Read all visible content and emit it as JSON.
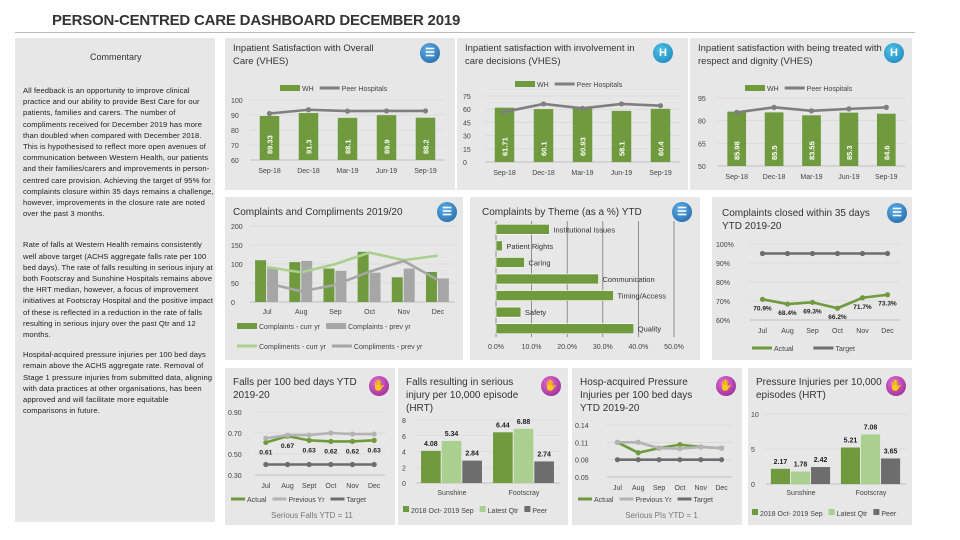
{
  "title": "PERSON-CENTRED CARE DASHBOARD DECEMBER 2019",
  "commentary": {
    "heading": "Commentary",
    "paragraphs": [
      "All feedback is an opportunity to improve clinical practice and our ability to provide Best Care for our patients, families and carers.  The number of compliments received for December 2019 has more than doubled when compared with December 2018.  This is hypothesised to reflect more open avenues of communication between Western Health, our patients and their families/carers and improvements in person-centred care provision.  Achieving the target of 95% for complaints closure within 35 days remains a challenge, however, improvements in the closure rate are noted over the past 3 months.",
      "Rate of falls at Western Health remains consistently well above target (ACHS aggregate falls rate per 100 bed days).  The rate of falls resulting in serious injury at both Footscray and Sunshine Hospitals remains above the HRT median, however, a focus of improvement initiatives at Footscray Hospital and the positive impact of these is reflected in a reduction in the rate of falls resulting in serious injury over the past Qtr and 12 months.",
      "Hospital-acquired pressure injuries per 100 bed days remain above the ACHS aggregate rate.  Removal of Stage 1 pressure injuries from submitted data, aligning with data practices at other organisations, has been approved and will facilitate more equitable comparisons in future."
    ]
  },
  "icons": {
    "satisfaction": "survey-search-icon",
    "hospital": "hospital-h-icon",
    "falls": "patient-safety-icon"
  },
  "chart_data": [
    {
      "type": "bar",
      "title": "Inpatient Satisfaction with Overall Care (VHES)",
      "categories": [
        "Sep-18",
        "Dec-18",
        "Mar-19",
        "Jun-19",
        "Sep-19"
      ],
      "ylim": [
        60,
        100
      ],
      "yticks": [
        "60",
        "70",
        "80",
        "90",
        "100"
      ],
      "ytick_values": [
        60,
        70,
        80,
        90,
        100
      ],
      "series": [
        {
          "name": "WH",
          "kind": "bar",
          "color": "#6f9a3d",
          "values": [
            89.33,
            91.3,
            88.1,
            89.9,
            88.2
          ],
          "labels": [
            "89.33",
            "91.3",
            "88.1",
            "89.9",
            "88.2"
          ]
        },
        {
          "name": "Peer Hospitals",
          "kind": "line",
          "color": "#7f7f7f",
          "values": [
            91,
            93.5,
            92.6,
            92.7,
            92.7
          ]
        }
      ]
    },
    {
      "type": "bar",
      "title": "Inpatient satisfaction with involvement in care decisions (VHES)",
      "categories": [
        "Sep-18",
        "Dec-18",
        "Mar-19",
        "Jun-19",
        "Sep-19"
      ],
      "ylim": [
        0,
        75
      ],
      "yticks": [
        "0",
        "15",
        "30",
        "45",
        "60",
        "75"
      ],
      "ytick_values": [
        0,
        15,
        30,
        45,
        60,
        75
      ],
      "series": [
        {
          "name": "WH",
          "kind": "bar",
          "color": "#6f9a3d",
          "values": [
            61.71,
            60.1,
            60.93,
            58.1,
            60.4
          ],
          "labels": [
            "61.71",
            "60.1",
            "60.93",
            "58.1",
            "60.4"
          ]
        },
        {
          "name": "Peer Hospitals",
          "kind": "line",
          "color": "#7f7f7f",
          "values": [
            57,
            66,
            61,
            66,
            64
          ]
        }
      ]
    },
    {
      "type": "bar",
      "title": "Inpatient satisfaction with being treated with respect and dignity (VHES)",
      "categories": [
        "Sep-18",
        "Dec-18",
        "Mar-19",
        "Jun-19",
        "Sep-19"
      ],
      "ylim": [
        50,
        95
      ],
      "yticks": [
        "50",
        "65",
        "80",
        "95"
      ],
      "ytick_values": [
        50,
        65,
        80,
        95
      ],
      "series": [
        {
          "name": "WH",
          "kind": "bar",
          "color": "#6f9a3d",
          "values": [
            85.98,
            85.5,
            83.55,
            85.3,
            84.6
          ],
          "labels": [
            "85.98",
            "85.5",
            "83.55",
            "85.3",
            "84.6"
          ]
        },
        {
          "name": "Peer Hospitals",
          "kind": "line",
          "color": "#7f7f7f",
          "values": [
            85.5,
            88.8,
            86.5,
            87.8,
            88.8
          ]
        }
      ]
    },
    {
      "type": "bar",
      "title": "Complaints and Compliments 2019/20",
      "categories": [
        "Jul",
        "Aug",
        "Sep",
        "Oct",
        "Nov",
        "Dec"
      ],
      "ylim": [
        0,
        200
      ],
      "yticks": [
        "0",
        "50",
        "100",
        "150",
        "200"
      ],
      "ytick_values": [
        0,
        50,
        100,
        150,
        200
      ],
      "series": [
        {
          "name": "Complaints - curr yr",
          "kind": "bar",
          "color": "#6f9a3d",
          "values": [
            110,
            105,
            88,
            132,
            65,
            79
          ]
        },
        {
          "name": "Complaints - prev yr",
          "kind": "bar",
          "color": "#a6a6a6",
          "values": [
            88,
            108,
            82,
            77,
            88,
            62
          ]
        },
        {
          "name": "Compliments - curr yr",
          "kind": "line",
          "color": "#a9d08e",
          "values": [
            92,
            78,
            100,
            130,
            110,
            122
          ]
        },
        {
          "name": "Compliments - prev yr",
          "kind": "line",
          "color": "#a6a6a6",
          "values": [
            50,
            28,
            45,
            80,
            108,
            58
          ]
        }
      ]
    },
    {
      "type": "bar",
      "orientation": "horizontal",
      "title": "Complaints by Theme (as a %) YTD",
      "categories": [
        "Institutional Issues",
        "Patient Rights",
        "Caring",
        "Communication",
        "Timing/Access",
        "Safety",
        "Quality"
      ],
      "xlim": [
        0,
        50
      ],
      "xticks": [
        "0.0%",
        "10.0%",
        "20.0%",
        "30.0%",
        "40.0%",
        "50.0%"
      ],
      "xtick_values": [
        0,
        10,
        20,
        30,
        40,
        50
      ],
      "series": [
        {
          "kind": "bar",
          "color": "#6f9a3d",
          "values": [
            15,
            1.8,
            8,
            28.8,
            33,
            7,
            38.7
          ]
        }
      ]
    },
    {
      "type": "line",
      "title": "Complaints closed within 35 days YTD 2019-20",
      "categories": [
        "Jul",
        "Aug",
        "Sep",
        "Oct",
        "Nov",
        "Dec"
      ],
      "ylim": [
        60,
        100
      ],
      "yticks": [
        "60%",
        "70%",
        "80%",
        "90%",
        "100%"
      ],
      "ytick_values": [
        60,
        70,
        80,
        90,
        100
      ],
      "series": [
        {
          "name": "Actual",
          "kind": "line",
          "color": "#6f9a3d",
          "values": [
            70.9,
            68.4,
            69.3,
            66.2,
            71.7,
            73.3
          ],
          "labels": [
            "70.9%",
            "68.4%",
            "69.3%",
            "66.2%",
            "71.7%",
            "73.3%"
          ]
        },
        {
          "name": "Target",
          "kind": "line",
          "color": "#6d6d6d",
          "values": [
            95,
            95,
            95,
            95,
            95,
            95
          ]
        }
      ]
    },
    {
      "type": "line",
      "title": "Falls per 100 bed days YTD 2019-20",
      "categories": [
        "Jul",
        "Aug",
        "Sept",
        "Oct",
        "Nov",
        "Dec"
      ],
      "ylim": [
        0.3,
        0.9
      ],
      "yticks": [
        "0.30",
        "0.50",
        "0.70",
        "0.90"
      ],
      "ytick_values": [
        0.3,
        0.5,
        0.7,
        0.9
      ],
      "footer": "Serious Falls YTD = 11",
      "series": [
        {
          "name": "Actual",
          "kind": "line",
          "color": "#6f9a3d",
          "values": [
            0.61,
            0.67,
            0.63,
            0.62,
            0.62,
            0.63
          ],
          "labels": [
            "0.61",
            "0.67",
            "0.63",
            "0.62",
            "0.62",
            "0.63"
          ]
        },
        {
          "name": "Previous Yr",
          "kind": "line",
          "color": "#b3b3b3",
          "values": [
            0.65,
            0.68,
            0.68,
            0.7,
            0.69,
            0.69
          ]
        },
        {
          "name": "Target",
          "kind": "line",
          "color": "#6d6d6d",
          "values": [
            0.4,
            0.4,
            0.4,
            0.4,
            0.4,
            0.4
          ]
        }
      ]
    },
    {
      "type": "bar",
      "title": "Falls resulting in serious injury per 10,000 episode (HRT)",
      "categories": [
        "Sunshine",
        "Footscray"
      ],
      "ylim": [
        0,
        8
      ],
      "yticks": [
        "0",
        "2",
        "4",
        "6",
        "8"
      ],
      "ytick_values": [
        0,
        2,
        4,
        6,
        8
      ],
      "series": [
        {
          "name": "2018 Oct- 2019 Sep",
          "kind": "bar",
          "color": "#6f9a3d",
          "values": [
            4.08,
            6.44
          ],
          "labels": [
            "4.08",
            "6.44"
          ]
        },
        {
          "name": "Latest Qtr",
          "kind": "bar",
          "color": "#a9d08e",
          "values": [
            5.34,
            6.88
          ],
          "labels": [
            "5.34",
            "6.88"
          ]
        },
        {
          "name": "Peer",
          "kind": "bar",
          "color": "#6d6d6d",
          "values": [
            2.84,
            2.74
          ],
          "labels": [
            "2.84",
            "2.74"
          ]
        }
      ]
    },
    {
      "type": "line",
      "title": "Hosp-acquired Pressure Injuries per 100 bed days YTD 2019-20",
      "categories": [
        "Jul",
        "Aug",
        "Sep",
        "Oct",
        "Nov",
        "Dec"
      ],
      "ylim": [
        0.05,
        0.14
      ],
      "yticks": [
        "0.05",
        "0.08",
        "0.11",
        "0.14"
      ],
      "ytick_values": [
        0.05,
        0.08,
        0.11,
        0.14
      ],
      "footer": "Serious PIs YTD = 1",
      "series": [
        {
          "name": "Actual",
          "kind": "line",
          "color": "#6f9a3d",
          "values": [
            0.11,
            0.092,
            0.1,
            0.106,
            0.102,
            0.1
          ]
        },
        {
          "name": "Previous Yr",
          "kind": "line",
          "color": "#b3b3b3",
          "values": [
            0.11,
            0.11,
            0.1,
            0.099,
            0.102,
            0.1
          ]
        },
        {
          "name": "Target",
          "kind": "line",
          "color": "#6d6d6d",
          "values": [
            0.08,
            0.08,
            0.08,
            0.08,
            0.08,
            0.08
          ]
        }
      ]
    },
    {
      "type": "bar",
      "title": "Pressure Injuries per 10,000 episodes (HRT)",
      "categories": [
        "Sunshine",
        "Footscray"
      ],
      "ylim": [
        0,
        10
      ],
      "yticks": [
        "0",
        "5",
        "10"
      ],
      "ytick_values": [
        0,
        5,
        10
      ],
      "series": [
        {
          "name": "2018 Oct- 2019 Sep",
          "kind": "bar",
          "color": "#6f9a3d",
          "values": [
            2.17,
            5.21
          ],
          "labels": [
            "2.17",
            "5.21"
          ]
        },
        {
          "name": "Latest Qtr",
          "kind": "bar",
          "color": "#a9d08e",
          "values": [
            1.78,
            7.08
          ],
          "labels": [
            "1.78",
            "7.08"
          ]
        },
        {
          "name": "Peer",
          "kind": "bar",
          "color": "#6d6d6d",
          "values": [
            2.42,
            3.65
          ],
          "labels": [
            "2.42",
            "3.65"
          ]
        }
      ]
    }
  ]
}
